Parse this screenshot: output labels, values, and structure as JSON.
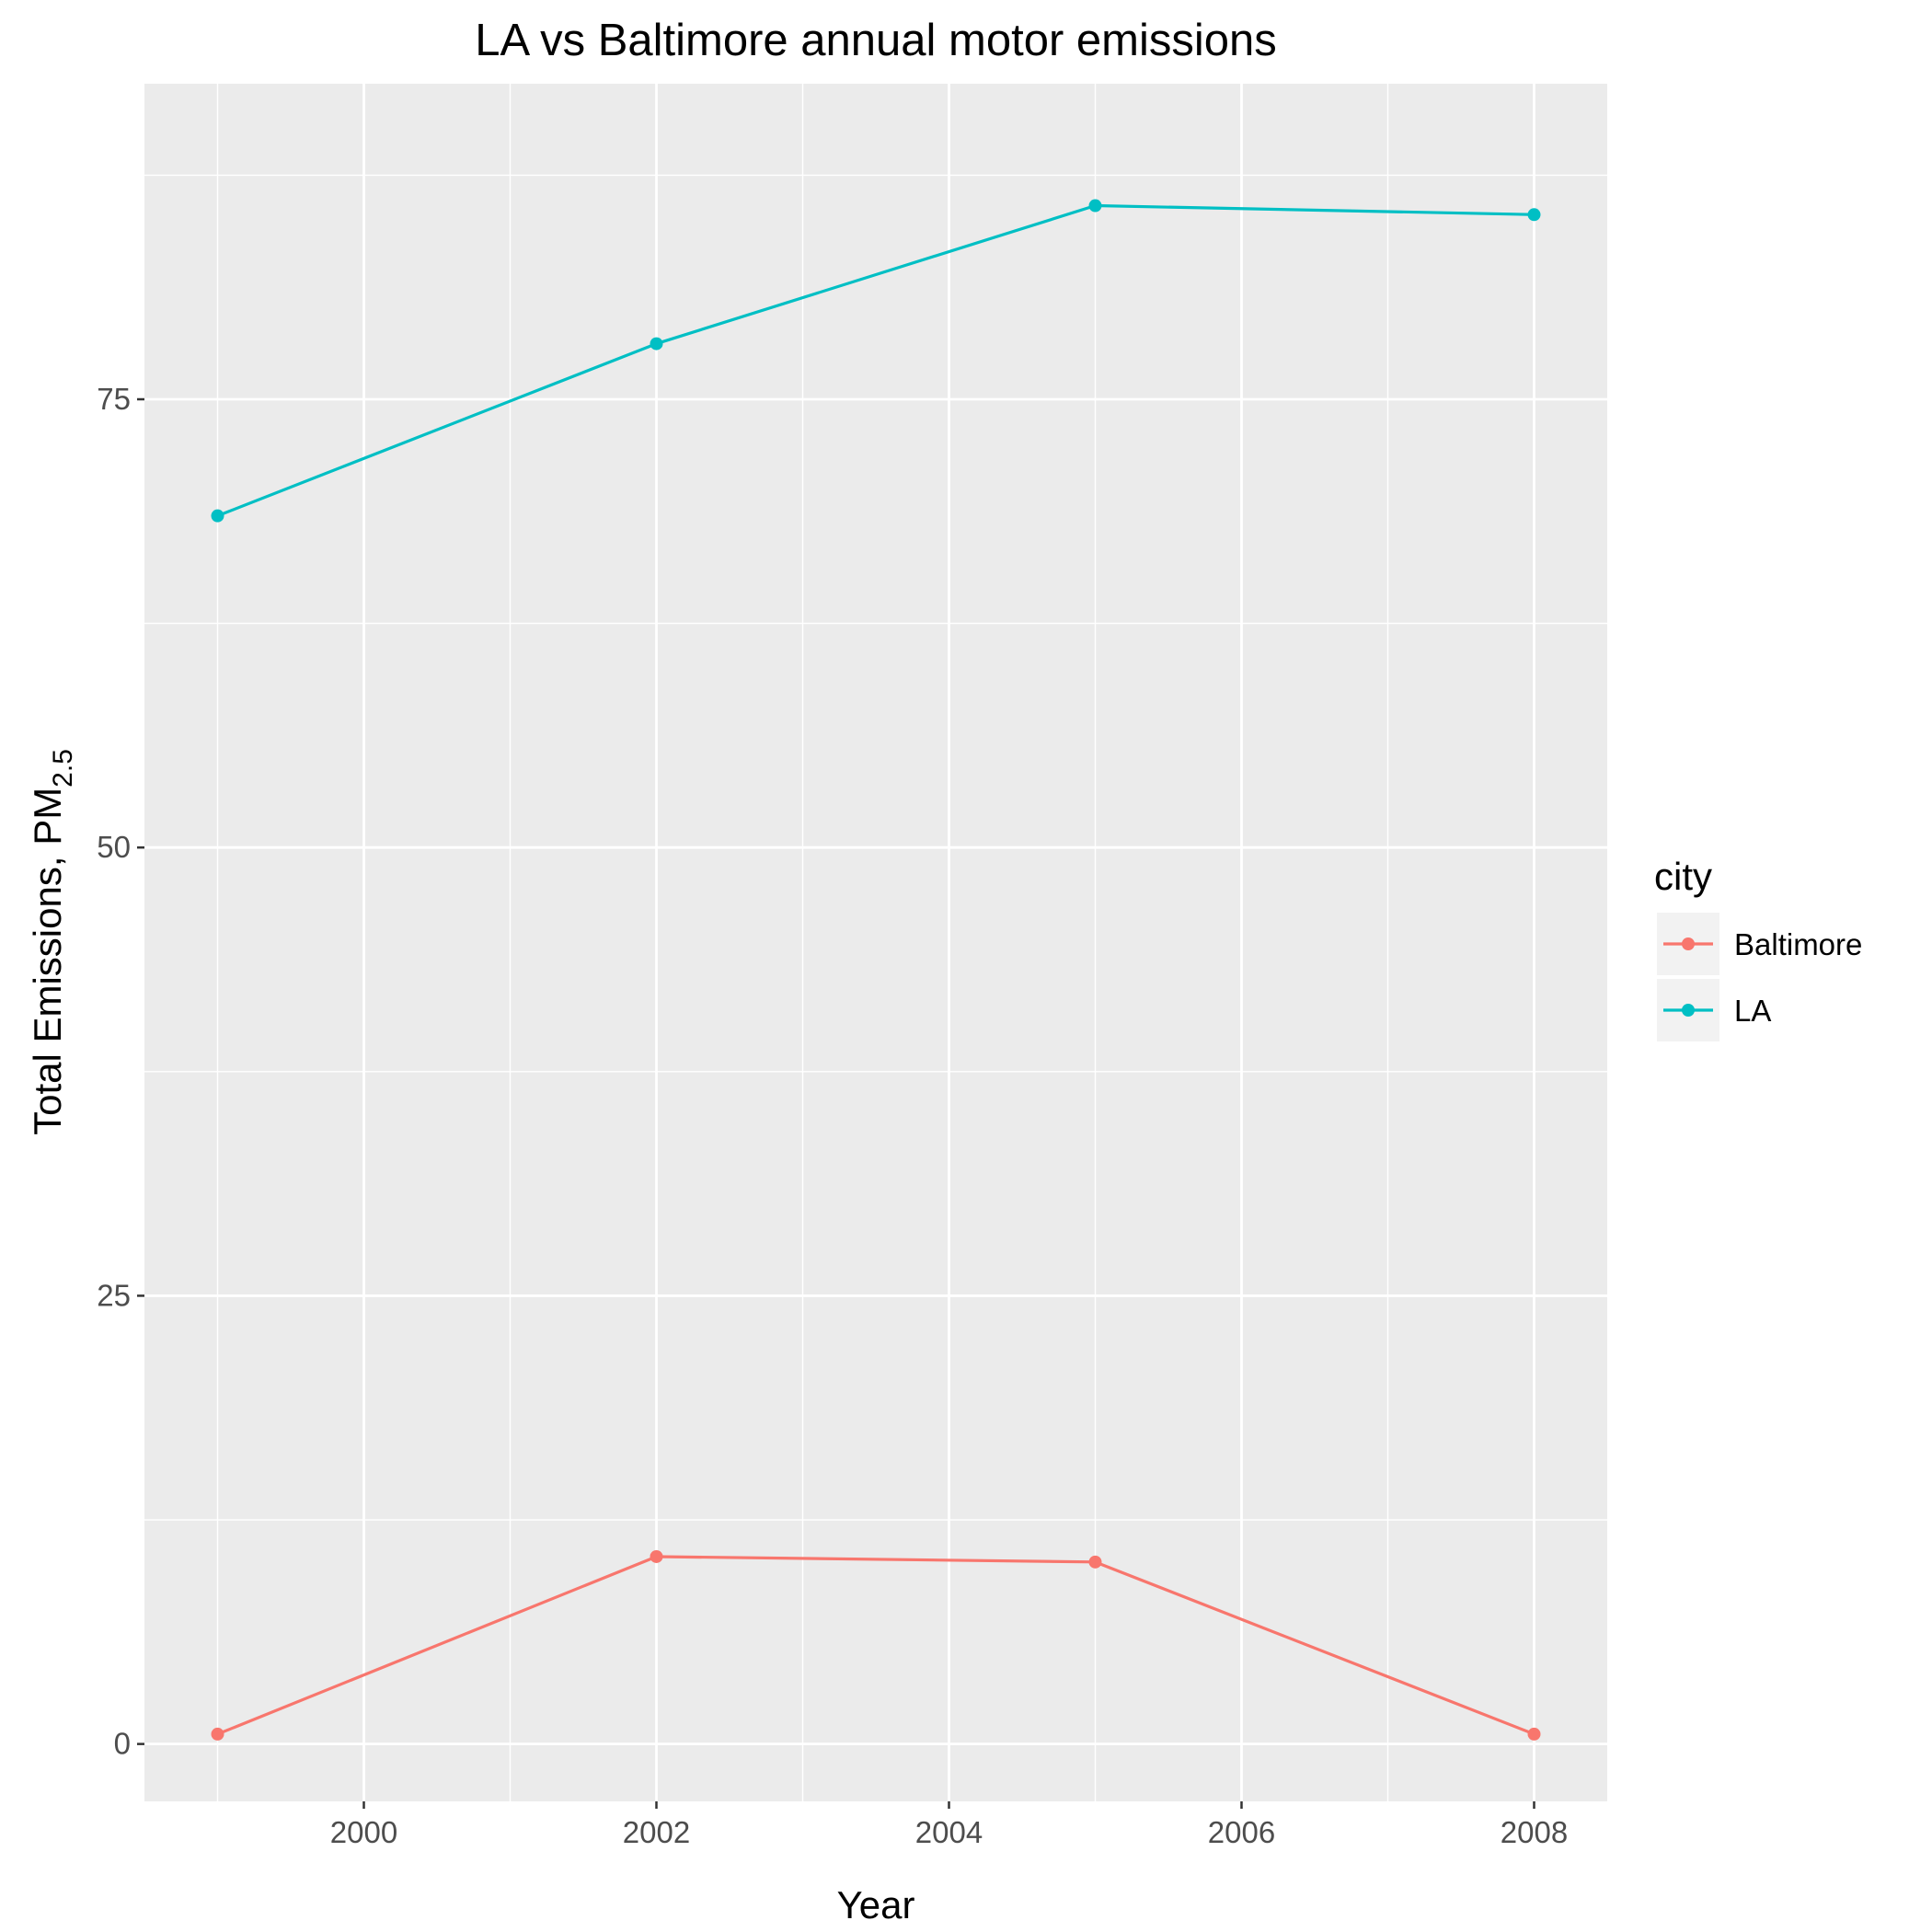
{
  "chart_data": {
    "type": "line",
    "title": "LA vs Baltimore annual motor emissions",
    "xlabel": "Year",
    "ylabel": {
      "main": "Total Emissions, PM",
      "subscript": "2.5"
    },
    "xlim": [
      1998.5,
      2008.5
    ],
    "ylim": [
      -3.2,
      92.6
    ],
    "x_ticks": [
      2000,
      2002,
      2004,
      2006,
      2008
    ],
    "y_ticks": [
      0,
      25,
      50,
      75
    ],
    "x": [
      1999,
      2002,
      2005,
      2008
    ],
    "series": [
      {
        "name": "Baltimore",
        "color": "#F8766D",
        "values": [
          0.55,
          10.45,
          10.15,
          0.55
        ]
      },
      {
        "name": "LA",
        "color": "#00BFC4",
        "values": [
          68.5,
          78.1,
          85.8,
          85.3
        ]
      }
    ],
    "legend": {
      "title": "city",
      "placement": "right"
    },
    "grid": true,
    "panel_color": "#EBEBEB",
    "grid_color": "#FFFFFF"
  }
}
